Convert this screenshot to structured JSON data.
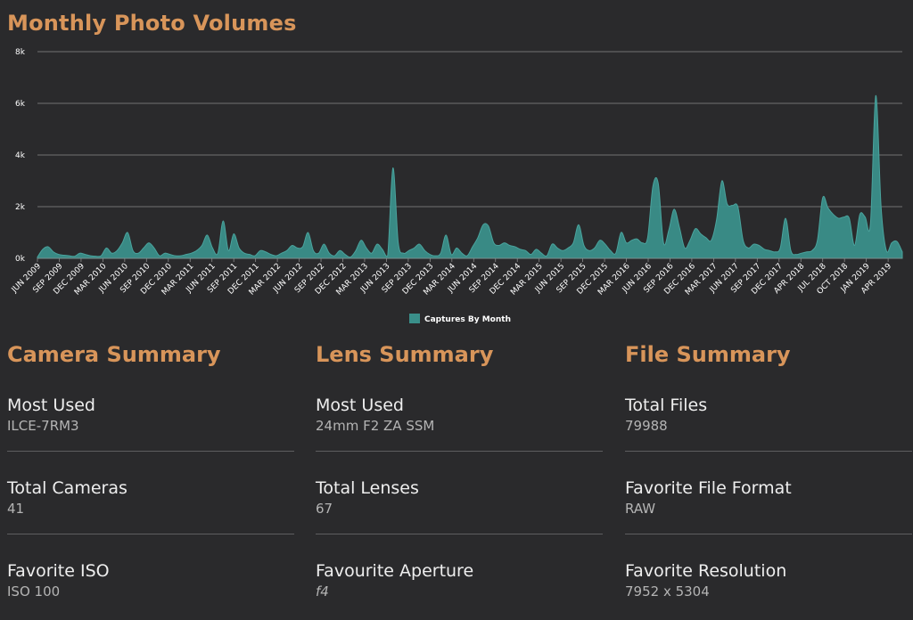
{
  "page": {
    "title": "Monthly Photo Volumes"
  },
  "chart_data": {
    "type": "area",
    "title": "",
    "legend": {
      "label": "Captures By Month",
      "placement": "bottom-center"
    },
    "series_color": "#3a8f8a",
    "ylim": [
      0,
      8000
    ],
    "y_ticks": [
      {
        "value": 0,
        "label": "0k"
      },
      {
        "value": 2000,
        "label": "2k"
      },
      {
        "value": 4000,
        "label": "4k"
      },
      {
        "value": 6000,
        "label": "6k"
      },
      {
        "value": 8000,
        "label": "8k"
      }
    ],
    "x_tick_labels": [
      "JUN 2009",
      "SEP 2009",
      "DEC 2009",
      "MAR 2010",
      "JUN 2010",
      "SEP 2010",
      "DEC 2010",
      "MAR 2011",
      "JUN 2011",
      "SEP 2011",
      "DEC 2011",
      "MAR 2012",
      "JUN 2012",
      "SEP 2012",
      "DEC 2012",
      "MAR 2013",
      "JUN 2013",
      "SEP 2013",
      "DEC 2013",
      "MAR 2014",
      "JUN 2014",
      "SEP 2014",
      "DEC 2014",
      "MAR 2015",
      "JUN 2015",
      "SEP 2015",
      "DEC 2015",
      "MAR 2016",
      "JUN 2016",
      "SEP 2016",
      "DEC 2016",
      "MAR 2017",
      "JUN 2017",
      "SEP 2017",
      "DEC 2017",
      "APR 2018",
      "JUL 2018",
      "OCT 2018",
      "JAN 2019",
      "APR 2019"
    ],
    "values": [
      50,
      350,
      450,
      250,
      150,
      120,
      100,
      80,
      200,
      150,
      100,
      80,
      100,
      400,
      200,
      300,
      600,
      1000,
      300,
      200,
      400,
      600,
      400,
      100,
      200,
      150,
      100,
      100,
      150,
      200,
      300,
      500,
      900,
      400,
      200,
      1450,
      300,
      950,
      400,
      200,
      150,
      100,
      300,
      250,
      150,
      100,
      200,
      300,
      500,
      400,
      450,
      1000,
      300,
      200,
      550,
      200,
      100,
      300,
      150,
      50,
      300,
      700,
      400,
      200,
      550,
      350,
      100,
      3500,
      600,
      200,
      300,
      400,
      550,
      300,
      150,
      100,
      200,
      900,
      150,
      400,
      200,
      100,
      450,
      800,
      1300,
      1250,
      600,
      500,
      600,
      500,
      450,
      350,
      300,
      150,
      350,
      200,
      100,
      550,
      400,
      300,
      400,
      600,
      1300,
      500,
      300,
      400,
      700,
      550,
      300,
      200,
      1000,
      600,
      700,
      750,
      600,
      800,
      2800,
      2900,
      600,
      1100,
      1900,
      1200,
      400,
      700,
      1150,
      950,
      800,
      700,
      1500,
      3000,
      2100,
      2050,
      2000,
      700,
      400,
      550,
      500,
      350,
      300,
      250,
      400,
      1550,
      300,
      150,
      200,
      250,
      300,
      700,
      2350,
      1950,
      1700,
      1550,
      1600,
      1550,
      500,
      1700,
      1600,
      1350,
      6300,
      2000,
      300,
      600,
      650,
      250
    ],
    "tick_every": 3
  },
  "summaries": [
    {
      "title": "Camera Summary",
      "stats": [
        {
          "label": "Most Used",
          "value": "ILCE-7RM3"
        },
        {
          "label": "Total Cameras",
          "value": "41"
        },
        {
          "label": "Favorite ISO",
          "value": "ISO 100"
        }
      ]
    },
    {
      "title": "Lens Summary",
      "stats": [
        {
          "label": "Most Used",
          "value": "24mm F2 ZA SSM"
        },
        {
          "label": "Total Lenses",
          "value": "67"
        },
        {
          "label": "Favourite Aperture",
          "value": "f4"
        }
      ]
    },
    {
      "title": "File Summary",
      "stats": [
        {
          "label": "Total Files",
          "value": "79988"
        },
        {
          "label": "Favorite File Format",
          "value": "RAW"
        },
        {
          "label": "Favorite Resolution",
          "value": "7952 x 5304"
        }
      ]
    }
  ]
}
